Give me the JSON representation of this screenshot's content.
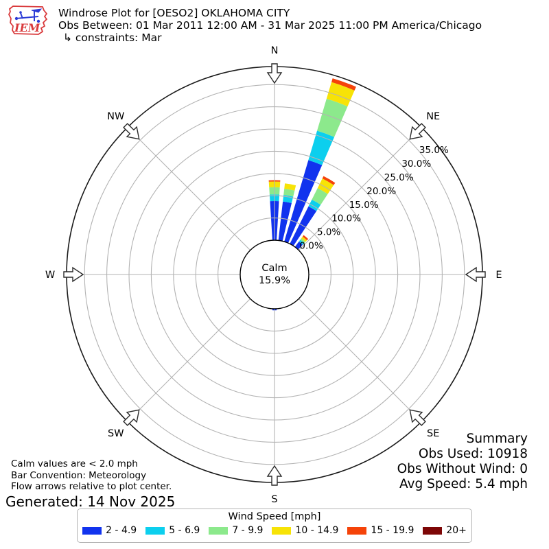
{
  "header": {
    "logo_text": "IEM",
    "title": "Windrose Plot for [OESO2] OKLAHOMA CITY",
    "subtitle": "Obs Between: 01 Mar 2011 12:00 AM - 31 Mar 2025 11:00 PM America/Chicago",
    "constraints": "↳ constraints: Mar"
  },
  "chart_data": {
    "type": "windrose",
    "units": "mph",
    "calm": {
      "label": "Calm",
      "percent_label": "15.9%",
      "value": 15.9
    },
    "ring_labels": [
      "0.0%",
      "5.0%",
      "10.0%",
      "15.0%",
      "20.0%",
      "25.0%",
      "30.0%",
      "35.0%"
    ],
    "ring_values": [
      0,
      5,
      10,
      15,
      20,
      25,
      30,
      35
    ],
    "compass": [
      {
        "label": "N",
        "deg": 0
      },
      {
        "label": "NE",
        "deg": 45
      },
      {
        "label": "E",
        "deg": 90
      },
      {
        "label": "SE",
        "deg": 135
      },
      {
        "label": "S",
        "deg": 180
      },
      {
        "label": "SW",
        "deg": 225
      },
      {
        "label": "W",
        "deg": 270
      },
      {
        "label": "NW",
        "deg": 315
      }
    ],
    "speed_bins": [
      {
        "label": "2 - 4.9",
        "color": "#1133ee"
      },
      {
        "label": "5 - 6.9",
        "color": "#0ccfee"
      },
      {
        "label": "7 - 9.9",
        "color": "#8ce98c"
      },
      {
        "label": "10 - 14.9",
        "color": "#f7e306"
      },
      {
        "label": "15 - 19.9",
        "color": "#f54309"
      },
      {
        "label": "20+",
        "color": "#7d0606"
      }
    ],
    "bars": [
      {
        "direction_deg": 0,
        "segments": [
          8.8,
          1.5,
          1.6,
          1.3,
          0.3,
          0
        ]
      },
      {
        "direction_deg": 10,
        "segments": [
          8.8,
          1.5,
          1.4,
          1.2,
          0,
          0
        ]
      },
      {
        "direction_deg": 20,
        "segments": [
          19.1,
          6.9,
          7.5,
          3.9,
          0.9,
          0
        ]
      },
      {
        "direction_deg": 30,
        "segments": [
          9.4,
          1.7,
          2.9,
          2.4,
          0.6,
          0
        ]
      },
      {
        "direction_deg": 40,
        "segments": [
          1.5,
          0.5,
          0.4,
          0.5,
          0.4,
          0
        ]
      },
      {
        "direction_deg": 180,
        "segments": [
          0.35,
          0,
          0,
          0,
          0,
          0
        ]
      }
    ]
  },
  "legend": {
    "title": "Wind Speed [mph]"
  },
  "notes": {
    "calm_note": "Calm values are < 2.0 mph",
    "convention": "Bar Convention: Meteorology",
    "arrows_note": "Flow arrows relative to plot center.",
    "generated": "Generated: 14 Nov 2025"
  },
  "summary": {
    "title": "Summary",
    "obs_used": "Obs Used: 10918",
    "obs_without_wind": "Obs Without Wind: 0",
    "avg_speed": "Avg Speed: 5.4 mph"
  }
}
